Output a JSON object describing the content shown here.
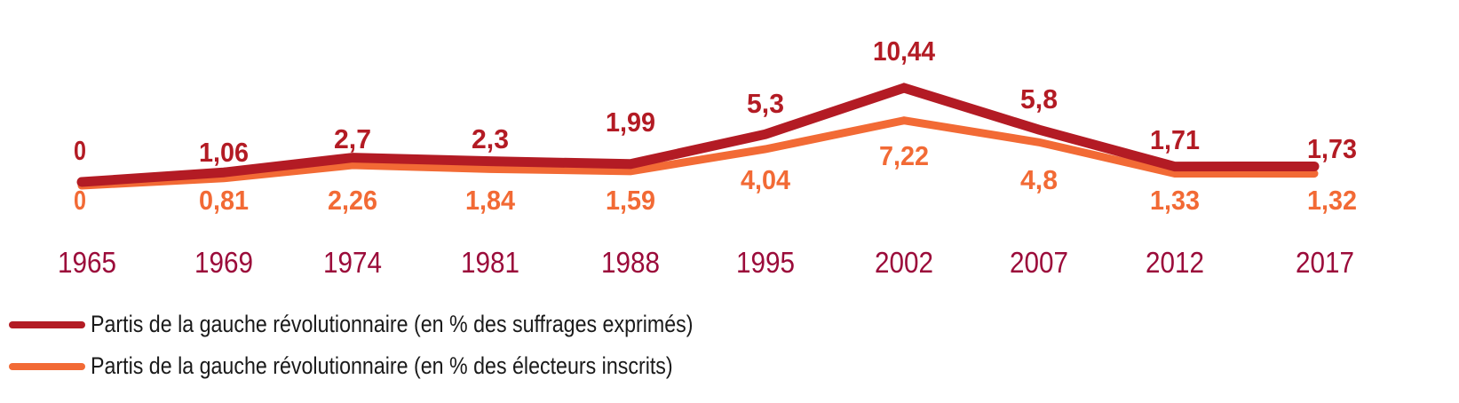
{
  "chart_data": {
    "type": "line",
    "title": "",
    "xlabel": "",
    "ylabel": "",
    "categories": [
      "1965",
      "1969",
      "1974",
      "1981",
      "1988",
      "1995",
      "2002",
      "2007",
      "2012",
      "2017"
    ],
    "ylim": [
      0,
      10.44
    ],
    "grid": false,
    "legend_position": "bottom-left",
    "series": [
      {
        "name": "Partis de la gauche révolutionnaire (en % des suffrages exprimés)",
        "color": "#b31b24",
        "values": [
          0,
          1.06,
          2.7,
          2.3,
          1.99,
          5.3,
          10.44,
          5.8,
          1.71,
          1.73
        ],
        "labels": [
          "0",
          "1,06",
          "2,7",
          "2,3",
          "1,99",
          "5,3",
          "10,44",
          "5,8",
          "1,71",
          "1,73"
        ]
      },
      {
        "name": "Partis de la gauche révolutionnaire (en % des électeurs inscrits)",
        "color": "#f26a35",
        "values": [
          0,
          0.81,
          2.26,
          1.84,
          1.59,
          4.04,
          7.22,
          4.8,
          1.33,
          1.32
        ],
        "labels": [
          "0",
          "0,81",
          "2,26",
          "1,84",
          "1,59",
          "4,04",
          "7,22",
          "4,8",
          "1,33",
          "1,32"
        ]
      }
    ]
  }
}
